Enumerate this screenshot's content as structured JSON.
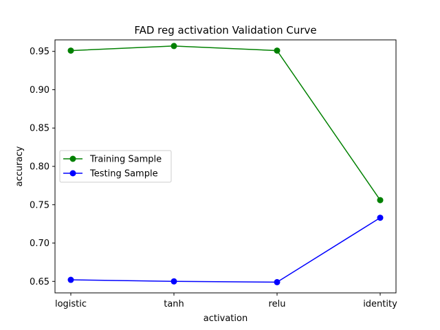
{
  "chart_data": {
    "type": "line",
    "title": "FAD reg activation Validation Curve",
    "xlabel": "activation",
    "ylabel": "accuracy",
    "categories": [
      "logistic",
      "tanh",
      "relu",
      "identity"
    ],
    "ylim": [
      0.635,
      0.965
    ],
    "yticks": [
      0.65,
      0.7,
      0.75,
      0.8,
      0.85,
      0.9,
      0.95
    ],
    "ytick_labels": [
      "0.65",
      "0.70",
      "0.75",
      "0.80",
      "0.85",
      "0.90",
      "0.95"
    ],
    "grid": false,
    "legend_position": "center-left",
    "series": [
      {
        "name": "Training Sample",
        "color": "#008000",
        "marker": "circle",
        "values": [
          0.951,
          0.957,
          0.951,
          0.756
        ]
      },
      {
        "name": "Testing Sample",
        "color": "#0000ff",
        "marker": "circle",
        "values": [
          0.652,
          0.65,
          0.649,
          0.733
        ]
      }
    ]
  }
}
